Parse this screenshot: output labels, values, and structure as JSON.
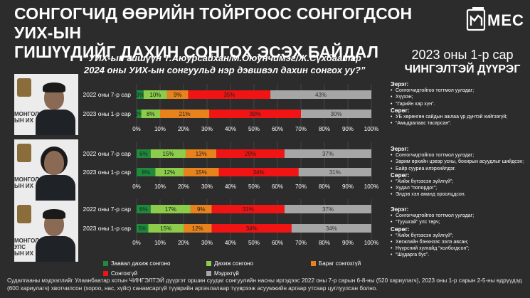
{
  "header": {
    "title_line1": "СОНГОГЧИД ӨӨРИЙН ТОЙРГООС СОНГОГДСОН УИХ-ЫН",
    "title_line2": "ГИШҮҮДИЙГ ДАХИН СОНГОХ ЭСЭХ БАЙДАЛ",
    "logo_text": "MEC"
  },
  "question": {
    "line1": "“УИХ-ын гишүүн Т.Аюурсайхан/М.Оюунчимэг/Ж.Сүхбаатар",
    "line2": "2024 оны УИХ-ын сонгуульд нэр дэвшвэл дахин сонгох уу?”"
  },
  "side_panel": {
    "year": "2023 оны 1-р сар",
    "region": "ЧИНГЭЛТЭЙ ДҮҮРЭГ"
  },
  "photo_sign": [
    "МОНГОЛ",
    "УЛС",
    "ЫН ИХ"
  ],
  "colors": {
    "definitely_yes": "#1e8a3c",
    "yes": "#8ccc4a",
    "probably_no": "#e8821c",
    "no": "#f01414",
    "unknown": "#a6a6a6",
    "photo_bg": "#ececec"
  },
  "chart_data": {
    "type": "bar",
    "orientation": "horizontal",
    "stacked": true,
    "xlim": [
      0,
      100
    ],
    "x_ticks": [
      "0%",
      "10%",
      "20%",
      "30%",
      "40%",
      "50%",
      "60%",
      "70%",
      "80%",
      "90%",
      "100%"
    ],
    "series_names": [
      "Заавал дахиж сонгоно",
      "Дахиж сонгоно",
      "Бараг сонгохгүй",
      "Сонгохгүй",
      "Мэдэхгүй"
    ],
    "groups": [
      {
        "rows": [
          {
            "label": "2022 оны 7-р сар",
            "values": [
              3,
              10,
              9,
              35,
              43
            ]
          },
          {
            "label": "2023 оны 1-р сар",
            "values": [
              2,
              8,
              21,
              39,
              30
            ]
          }
        ]
      },
      {
        "rows": [
          {
            "label": "2022 оны 7-р сар",
            "values": [
              6,
              15,
              13,
              29,
              37
            ]
          },
          {
            "label": "2023 оны 1-р сар",
            "values": [
              8,
              12,
              15,
              34,
              31
            ]
          }
        ]
      },
      {
        "rows": [
          {
            "label": "2022 оны 7-р сар",
            "values": [
              6,
              17,
              9,
              31,
              37
            ]
          },
          {
            "label": "2023 оны 1-р сар",
            "values": [
              5,
              15,
              12,
              34,
              34
            ]
          }
        ]
      }
    ]
  },
  "notes": [
    {
      "pos_heading": "Эерэг:",
      "pos": [
        "Сонгогчидтойгоо тогтмол уулздаг;",
        "Хүүхэн;",
        "“Гарийн хар хүн”."
      ],
      "neg_heading": "Сөрөг:",
      "neg": [
        "УБ хөрөнгөн сайдын ажлаа үр дүнтэй хийгээгүй;",
        "“Амьдралаас тасарсан”."
      ]
    },
    {
      "pos_heading": "Эерэг:",
      "pos": [
        "Сонгогчидтойгоо тогтмол уулздаг;",
        "Зарим өрхийн цэвэр усны, бохирын асуудлыг шийдсэн;",
        "Байр сууриа илэрхийлдэг."
      ],
      "neg_heading": "Сөрөг:",
      "neg": [
        "“Хийж бүтээсэн зүйлгүй”;",
        "Худал “попордог”;",
        "Элдэв хэл аманд ороолцдсон."
      ]
    },
    {
      "pos_heading": "Эерэг:",
      "pos": [
        "Сонгогчидтойгоо тогтмол уулздаг;",
        "“Туушгай” улс төрч;"
      ],
      "neg_heading": "Сөрөг:",
      "neg": [
        "“Хийж бүтээсэн зүйлгүй”;",
        "Хөгжлийн бэнхнээс ээлэ авсан;",
        "Нүүрсний хулгайд “холбогдсон”;",
        "“Шударга бус”."
      ]
    }
  ],
  "footnote": "Судалгааны мэдээллийг Улаанбаатар хотын ЧИНГЭЛТЭЙ дүүргэт оршин суудаг сонгуулийн насны иргэдээс 2022 оны 7-р сарын 6-8-ны (520 хариулагч), 2023 оны 1-р сарын 2-5-ны өдрүүдэд (600 хариулагч) хвотчилсон (хороо, нас, хүйс) санамсаргүй түүврийн аргачлалаар түүврээж асуумжийн аргаар утсаар цуглуулсан болно."
}
